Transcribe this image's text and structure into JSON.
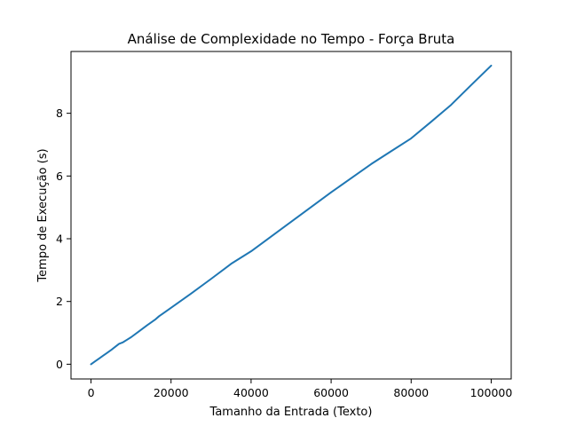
{
  "chart_data": {
    "type": "line",
    "title": "Análise de Complexidade no Tempo - Força Bruta",
    "xlabel": "Tamanho da Entrada (Texto)",
    "ylabel": "Tempo de Execução (s)",
    "xlim": [
      -5000,
      105000
    ],
    "ylim": [
      -0.47,
      9.97
    ],
    "xticks": [
      0,
      20000,
      40000,
      60000,
      80000,
      100000
    ],
    "xtick_labels": [
      "0",
      "20000",
      "40000",
      "60000",
      "80000",
      "100000"
    ],
    "yticks": [
      0,
      2,
      4,
      6,
      8
    ],
    "ytick_labels": [
      "0",
      "2",
      "4",
      "6",
      "8"
    ],
    "grid": false,
    "legend": "none",
    "series": [
      {
        "color": "#1f77b4",
        "x": [
          0,
          1000,
          2000,
          3000,
          4000,
          5000,
          6000,
          7000,
          8000,
          9000,
          10000,
          12000,
          14000,
          16000,
          17000,
          18000,
          20000,
          25000,
          30000,
          35000,
          40000,
          45000,
          50000,
          55000,
          60000,
          65000,
          70000,
          75000,
          80000,
          85000,
          90000,
          95000,
          100000
        ],
        "y": [
          0,
          0.09,
          0.18,
          0.27,
          0.36,
          0.45,
          0.55,
          0.65,
          0.7,
          0.78,
          0.86,
          1.05,
          1.24,
          1.42,
          1.53,
          1.62,
          1.8,
          2.25,
          2.72,
          3.2,
          3.6,
          4.07,
          4.54,
          5.01,
          5.48,
          5.93,
          6.38,
          6.79,
          7.2,
          7.73,
          8.27,
          8.9,
          9.52
        ]
      }
    ]
  }
}
